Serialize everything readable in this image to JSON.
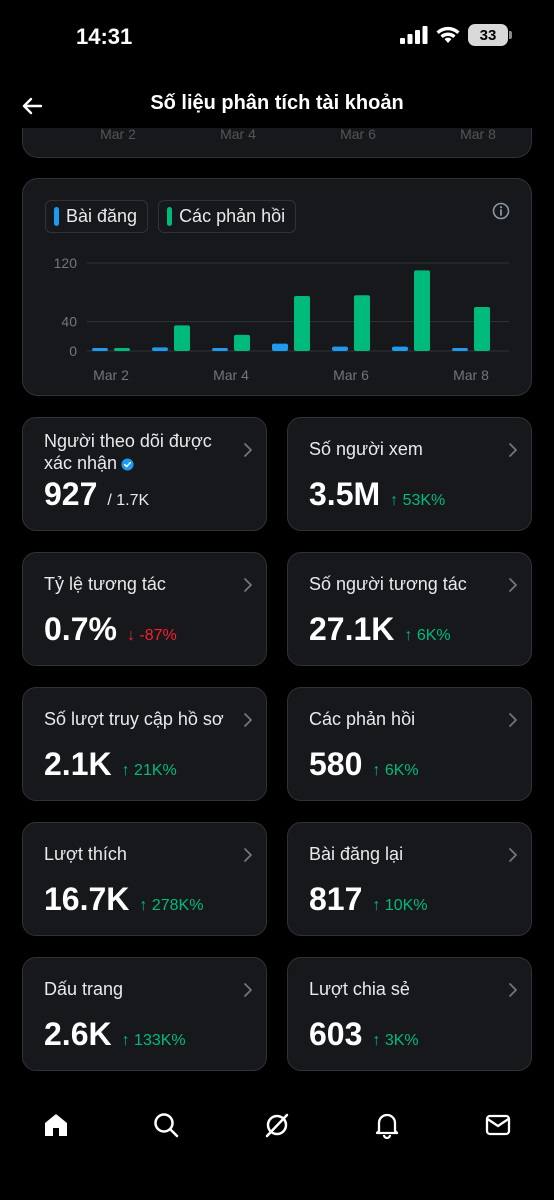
{
  "status_bar": {
    "time": "14:31",
    "battery": "33"
  },
  "header": {
    "title": "Số liệu phân tích tài khoản",
    "back_icon": "arrow-left-icon"
  },
  "previous_chart_ticks": [
    "Mar 2",
    "Mar 4",
    "Mar 6",
    "Mar 8"
  ],
  "legend": [
    {
      "label": "Bài đăng",
      "color": "#1d9bf0"
    },
    {
      "label": "Các phản hồi",
      "color": "#00ba7c"
    }
  ],
  "chart_data": {
    "type": "bar",
    "categories": [
      "Mar 2",
      "Mar 3",
      "Mar 4",
      "Mar 5",
      "Mar 6",
      "Mar 7",
      "Mar 8"
    ],
    "x_tick_labels": [
      "Mar 2",
      "Mar 4",
      "Mar 6",
      "Mar 8"
    ],
    "y_tick_labels": [
      "120",
      "40",
      "0"
    ],
    "y_ticks": [
      120,
      40,
      0
    ],
    "ylim": [
      0,
      120
    ],
    "series": [
      {
        "name": "Bài đăng",
        "color": "#1d9bf0",
        "values": [
          2,
          5,
          3,
          10,
          6,
          6,
          4
        ]
      },
      {
        "name": "Các phản hồi",
        "color": "#00ba7c",
        "values": [
          2,
          35,
          22,
          75,
          76,
          110,
          60
        ]
      }
    ]
  },
  "metrics": [
    {
      "label": "Người theo dõi được xác nhận",
      "value": "927",
      "sub": "/ 1.7K",
      "change": "",
      "direction": "",
      "verified": true
    },
    {
      "label": "Số người xem",
      "value": "3.5M",
      "sub": "",
      "change": "↑ 53K%",
      "direction": "up",
      "verified": false
    },
    {
      "label": "Tỷ lệ tương tác",
      "value": "0.7%",
      "sub": "",
      "change": "↓ -87%",
      "direction": "down",
      "verified": false
    },
    {
      "label": "Số người tương tác",
      "value": "27.1K",
      "sub": "",
      "change": "↑ 6K%",
      "direction": "up",
      "verified": false
    },
    {
      "label": "Số lượt truy cập hồ sơ",
      "value": "2.1K",
      "sub": "",
      "change": "↑ 21K%",
      "direction": "up",
      "verified": false
    },
    {
      "label": "Các phản hồi",
      "value": "580",
      "sub": "",
      "change": "↑ 6K%",
      "direction": "up",
      "verified": false
    },
    {
      "label": "Lượt thích",
      "value": "16.7K",
      "sub": "",
      "change": "↑ 278K%",
      "direction": "up",
      "verified": false
    },
    {
      "label": "Bài đăng lại",
      "value": "817",
      "sub": "",
      "change": "↑ 10K%",
      "direction": "up",
      "verified": false
    },
    {
      "label": "Dấu trang",
      "value": "2.6K",
      "sub": "",
      "change": "↑ 133K%",
      "direction": "up",
      "verified": false
    },
    {
      "label": "Lượt chia sẻ",
      "value": "603",
      "sub": "",
      "change": "↑ 3K%",
      "direction": "up",
      "verified": false
    }
  ],
  "bottom_nav": [
    "home-icon",
    "search-icon",
    "grok-icon",
    "bell-icon",
    "mail-icon"
  ]
}
